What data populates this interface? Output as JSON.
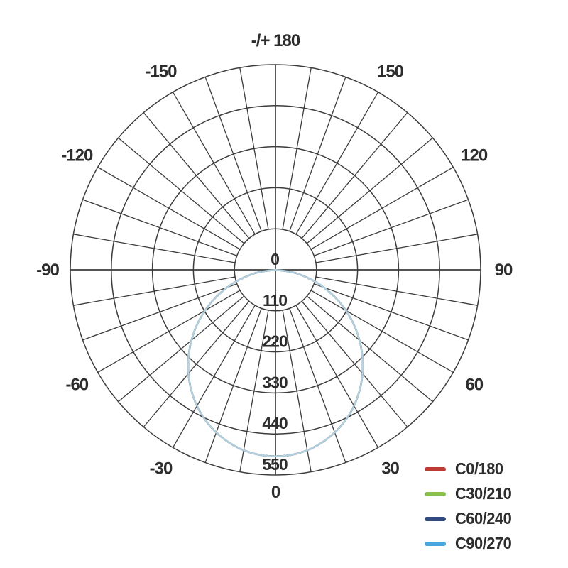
{
  "chart_data": {
    "type": "line",
    "subtype": "polar-photometric",
    "title": "",
    "grid": true,
    "colors": {
      "grid": "#3c3c3c",
      "text": "#2d2d2d",
      "background": "#ffffff",
      "plotted_curve_visible": "#b3d0e0"
    },
    "angle_axis": {
      "zero_direction": "down",
      "tick_step_deg": 10,
      "label_step_deg": 30,
      "labels": [
        {
          "deg": 180,
          "label": "-/+ 180"
        },
        {
          "deg": 150,
          "label": "150"
        },
        {
          "deg": 120,
          "label": "120"
        },
        {
          "deg": 90,
          "label": "90"
        },
        {
          "deg": 60,
          "label": "60"
        },
        {
          "deg": 30,
          "label": "30"
        },
        {
          "deg": 0,
          "label": "0"
        },
        {
          "deg": -30,
          "label": "-30"
        },
        {
          "deg": -60,
          "label": "-60"
        },
        {
          "deg": -90,
          "label": "-90"
        },
        {
          "deg": -120,
          "label": "-120"
        },
        {
          "deg": -150,
          "label": "-150"
        }
      ]
    },
    "radial_axis": {
      "ticks": [
        "0",
        "110",
        "220",
        "330",
        "440",
        "550"
      ],
      "max": 550,
      "rings": 5
    },
    "x_angles_deg": [
      -90,
      -80,
      -70,
      -60,
      -50,
      -40,
      -30,
      -20,
      -10,
      0,
      10,
      20,
      30,
      40,
      50,
      60,
      70,
      80,
      90
    ],
    "series": [
      {
        "name": "C0/180",
        "color": "#bf3a33",
        "plot_color": "#bf3a33",
        "values": [
          0,
          61,
          138,
          218,
          294,
          363,
          421,
          464,
          491,
          500,
          491,
          464,
          421,
          363,
          294,
          218,
          138,
          61,
          0
        ]
      },
      {
        "name": "C30/210",
        "color": "#8bbf4d",
        "plot_color": "#8bbf4d",
        "values": [
          0,
          61,
          138,
          218,
          294,
          363,
          421,
          464,
          491,
          500,
          491,
          464,
          421,
          363,
          294,
          218,
          138,
          61,
          0
        ]
      },
      {
        "name": "C60/240",
        "color": "#324a7c",
        "plot_color": "#324a7c",
        "values": [
          0,
          61,
          138,
          218,
          294,
          363,
          421,
          464,
          491,
          500,
          491,
          464,
          421,
          363,
          294,
          218,
          138,
          61,
          0
        ]
      },
      {
        "name": "C90/270",
        "color": "#45a6e0",
        "plot_color": "#b3d0e0",
        "values": [
          0,
          61,
          138,
          218,
          294,
          363,
          421,
          464,
          491,
          500,
          491,
          464,
          421,
          363,
          294,
          218,
          138,
          61,
          0
        ]
      }
    ],
    "legend_position": "bottom-right",
    "note": "All four C-plane curves coincide; topmost pale blue curve (C90/270) is the visible one."
  }
}
